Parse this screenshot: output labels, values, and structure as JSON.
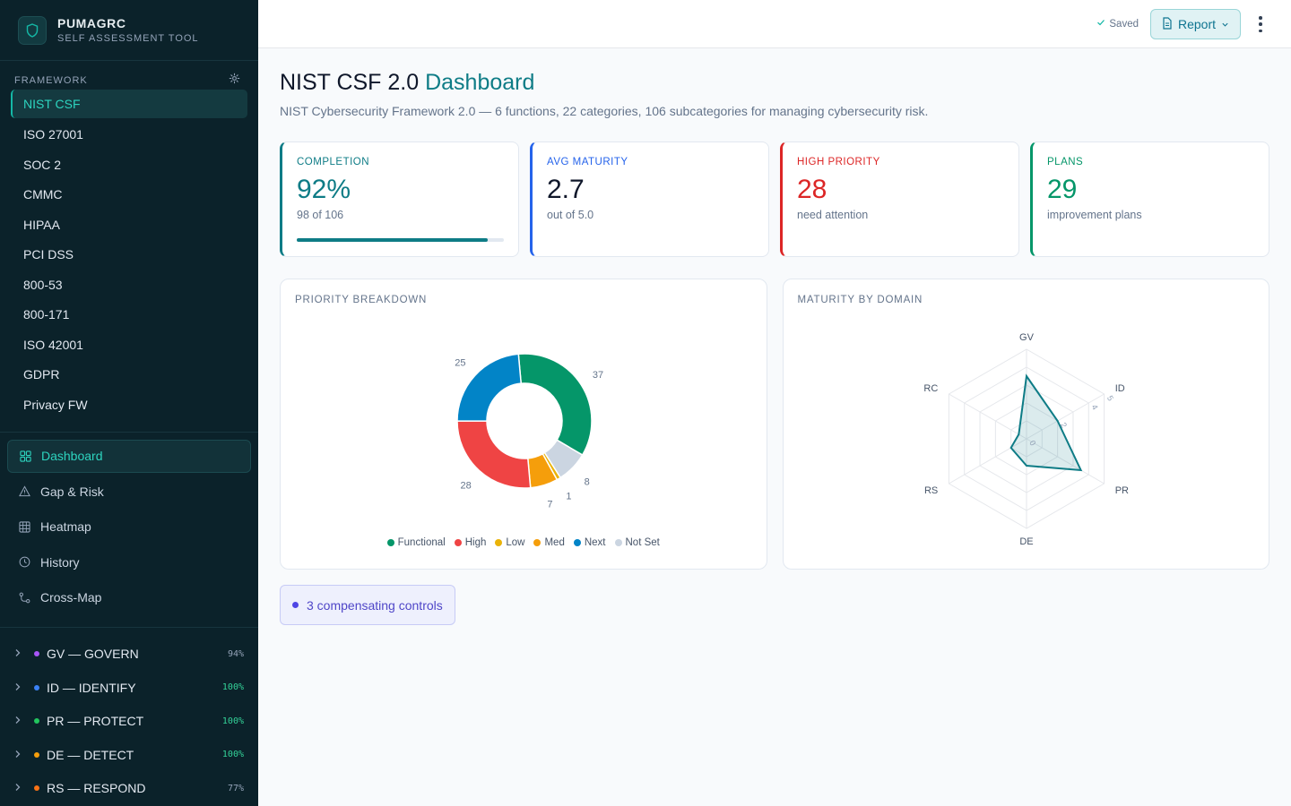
{
  "brand": {
    "name": "PUMAGRC",
    "subtitle": "SELF ASSESSMENT TOOL"
  },
  "framework": {
    "heading": "FRAMEWORK",
    "items": [
      "NIST CSF",
      "ISO 27001",
      "SOC 2",
      "CMMC",
      "HIPAA",
      "PCI DSS",
      "800-53",
      "800-171",
      "ISO 42001",
      "GDPR",
      "Privacy FW"
    ],
    "active": "NIST CSF"
  },
  "nav": [
    {
      "label": "Dashboard",
      "icon": "grid-icon",
      "active": true
    },
    {
      "label": "Gap & Risk",
      "icon": "warning-icon"
    },
    {
      "label": "Heatmap",
      "icon": "table-icon"
    },
    {
      "label": "History",
      "icon": "clock-icon"
    },
    {
      "label": "Cross-Map",
      "icon": "map-icon"
    }
  ],
  "domains": [
    {
      "label": "GV — GOVERN",
      "pct": "94%",
      "color": "#a855f7",
      "pct_color": "#94a3b8"
    },
    {
      "label": "ID — IDENTIFY",
      "pct": "100%",
      "color": "#3b82f6",
      "pct_color": "#34d399"
    },
    {
      "label": "PR — PROTECT",
      "pct": "100%",
      "color": "#22c55e",
      "pct_color": "#34d399"
    },
    {
      "label": "DE — DETECT",
      "pct": "100%",
      "color": "#f59e0b",
      "pct_color": "#34d399"
    },
    {
      "label": "RS — RESPOND",
      "pct": "77%",
      "color": "#f97316",
      "pct_color": "#94a3b8"
    }
  ],
  "topbar": {
    "saved": "Saved",
    "report": "Report"
  },
  "page": {
    "title": "NIST CSF 2.0",
    "title_accent": "Dashboard",
    "subtitle": "NIST Cybersecurity Framework 2.0 — 6 functions, 22 categories, 106 subcategories for managing cybersecurity risk."
  },
  "stats": [
    {
      "label": "COMPLETION",
      "value": "92%",
      "sub": "98 of 106",
      "color": "#0e7c86",
      "value_color": "#0e7c86",
      "progress": 0.92
    },
    {
      "label": "AVG MATURITY",
      "value": "2.7",
      "sub": "out of 5.0",
      "color": "#2563eb",
      "value_color": "#0f172a"
    },
    {
      "label": "HIGH PRIORITY",
      "value": "28",
      "sub": "need attention",
      "color": "#dc2626",
      "value_color": "#dc2626"
    },
    {
      "label": "PLANS",
      "value": "29",
      "sub": "improvement plans",
      "color": "#059669",
      "value_color": "#059669"
    }
  ],
  "priority_card": {
    "title": "PRIORITY BREAKDOWN"
  },
  "maturity_card": {
    "title": "MATURITY BY DOMAIN"
  },
  "chart_data": [
    {
      "type": "pie",
      "title": "PRIORITY BREAKDOWN",
      "categories": [
        "Functional",
        "Not Set",
        "Low",
        "Med",
        "High",
        "Next"
      ],
      "values": [
        37,
        8,
        1,
        7,
        28,
        25
      ],
      "colors": [
        "#059669",
        "#cbd5e1",
        "#eab308",
        "#f59e0b",
        "#ef4444",
        "#0284c7"
      ],
      "legend": [
        {
          "name": "Functional",
          "color": "#059669"
        },
        {
          "name": "High",
          "color": "#ef4444"
        },
        {
          "name": "Low",
          "color": "#eab308"
        },
        {
          "name": "Med",
          "color": "#f59e0b"
        },
        {
          "name": "Next",
          "color": "#0284c7"
        },
        {
          "name": "Not Set",
          "color": "#cbd5e1"
        }
      ]
    },
    {
      "type": "radar",
      "title": "MATURITY BY DOMAIN",
      "axes": [
        "GV",
        "ID",
        "PR",
        "DE",
        "RS",
        "RC"
      ],
      "values": [
        3.5,
        2.0,
        3.5,
        1.5,
        1.0,
        0.5
      ],
      "range": [
        0,
        5
      ],
      "tick_labels": [
        "0",
        "2",
        "4",
        "5"
      ],
      "color": "#0e7c86"
    }
  ],
  "compensating": {
    "label": "3 compensating controls"
  }
}
